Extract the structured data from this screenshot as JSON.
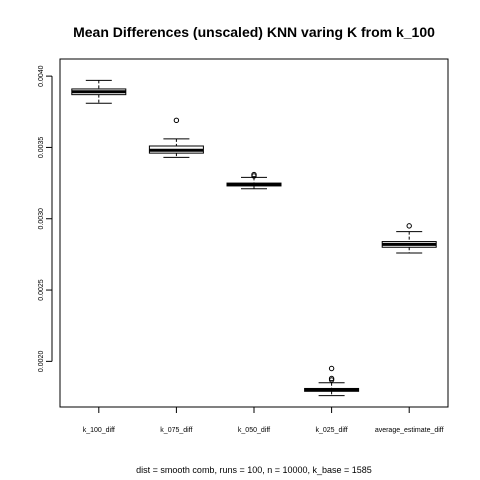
{
  "chart_data": {
    "type": "box",
    "title": "Mean Differences (unscaled) KNN varing K from k_100",
    "xlabel": "dist = smooth comb, runs = 100, n = 10000, k_base = 1585",
    "ylabel": "",
    "ylim": [
      0.00168,
      0.00412
    ],
    "yticks": [
      {
        "value": 0.002,
        "label": "0.0020"
      },
      {
        "value": 0.0025,
        "label": "0.0025"
      },
      {
        "value": 0.003,
        "label": "0.0030"
      },
      {
        "value": 0.0035,
        "label": "0.0035"
      },
      {
        "value": 0.004,
        "label": "0.0040"
      }
    ],
    "grid": false,
    "categories": [
      "k_100_diff",
      "k_075_diff",
      "k_050_diff",
      "k_025_diff",
      "average_estimate_diff"
    ],
    "boxes": [
      {
        "whisker_low": 0.00381,
        "q1": 0.00387,
        "median": 0.00389,
        "q3": 0.00391,
        "whisker_high": 0.00397,
        "outliers": []
      },
      {
        "whisker_low": 0.00343,
        "q1": 0.00346,
        "median": 0.00348,
        "q3": 0.00351,
        "whisker_high": 0.00356,
        "outliers": [
          0.00369
        ]
      },
      {
        "whisker_low": 0.00321,
        "q1": 0.00323,
        "median": 0.00324,
        "q3": 0.00325,
        "whisker_high": 0.00329,
        "outliers": [
          0.00331,
          0.0033
        ]
      },
      {
        "whisker_low": 0.00176,
        "q1": 0.00179,
        "median": 0.0018,
        "q3": 0.00181,
        "whisker_high": 0.00185,
        "outliers": [
          0.00195,
          0.00188,
          0.00187
        ]
      },
      {
        "whisker_low": 0.00276,
        "q1": 0.0028,
        "median": 0.00282,
        "q3": 0.00284,
        "whisker_high": 0.00291,
        "outliers": [
          0.00295
        ]
      }
    ]
  }
}
